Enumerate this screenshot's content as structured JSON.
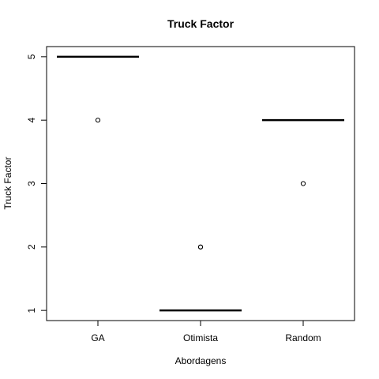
{
  "chart_data": {
    "type": "boxplot",
    "title": "Truck Factor",
    "xlabel": "Abordagens",
    "ylabel": "Truck Factor",
    "categories": [
      "GA",
      "Otimista",
      "Random"
    ],
    "medians": [
      5,
      1,
      4
    ],
    "outliers": [
      [
        4
      ],
      [
        2,
        2
      ],
      [
        3
      ]
    ],
    "y_ticks": [
      1,
      2,
      3,
      4,
      5
    ],
    "ylim": [
      0.84,
      5.16
    ],
    "grid": false,
    "legend": "none"
  }
}
